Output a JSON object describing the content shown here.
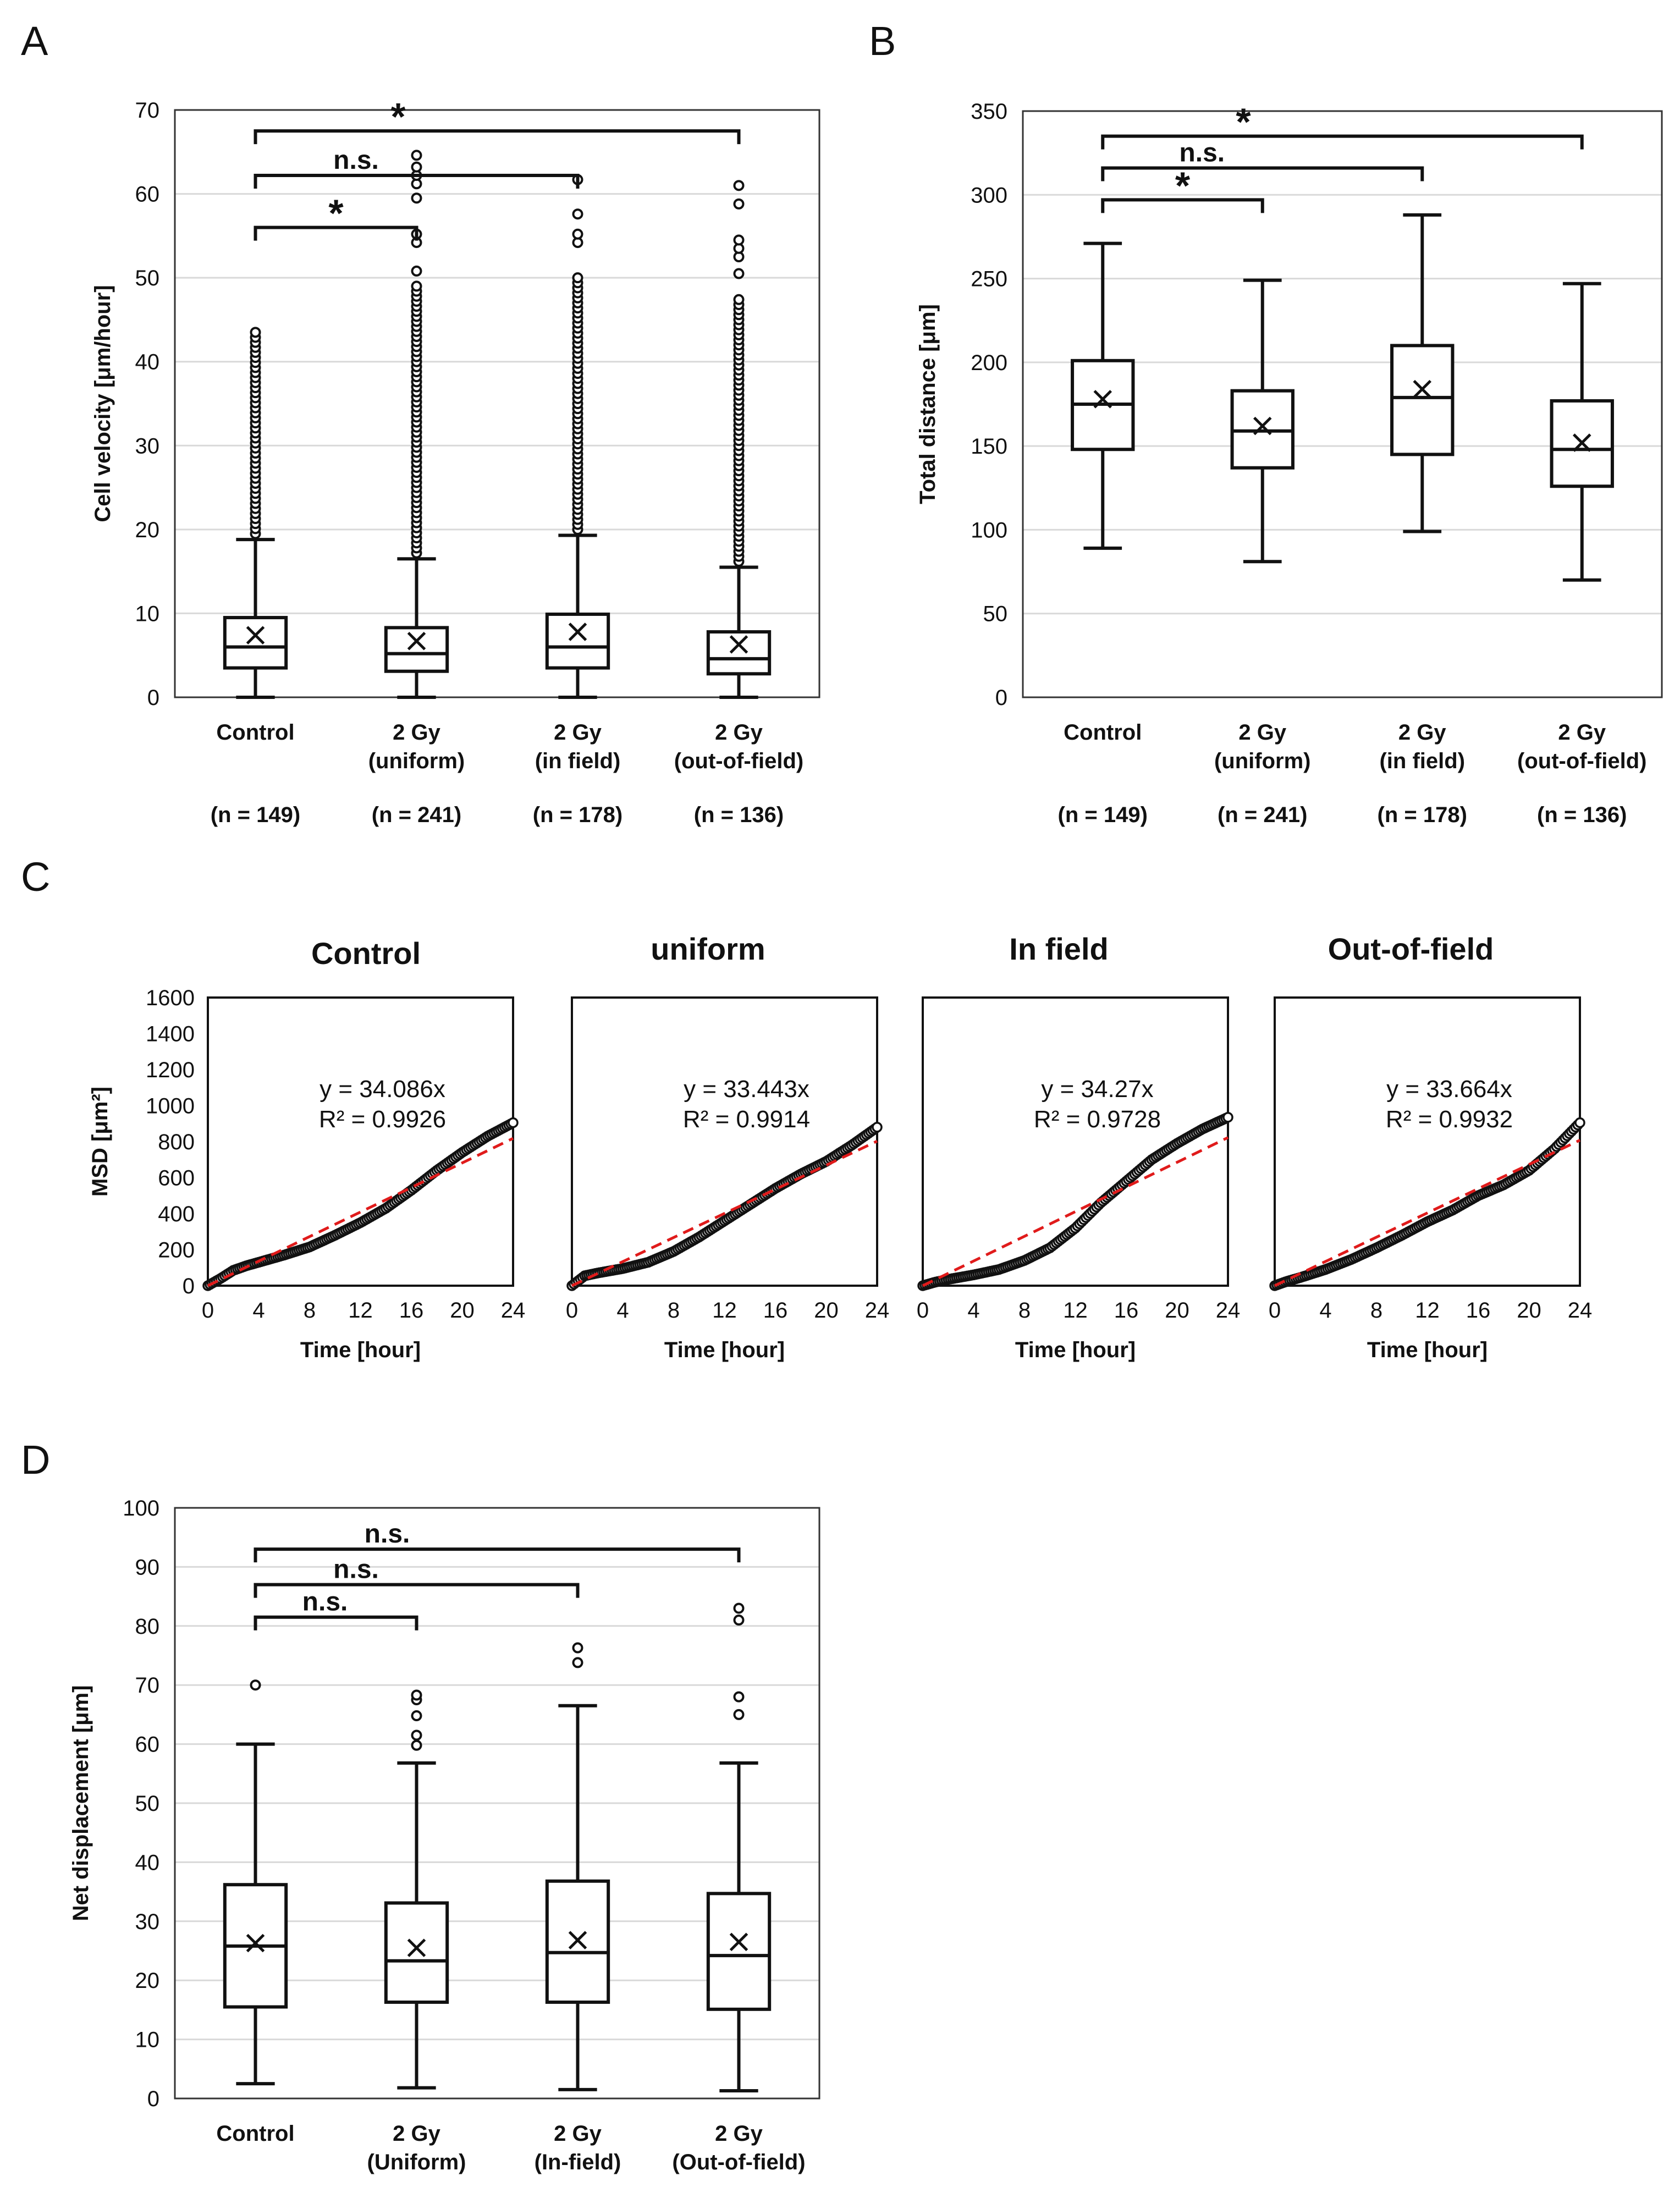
{
  "panels": {
    "A": {
      "letter": "A",
      "chart_data": {
        "type": "box",
        "title": "",
        "ylabel": "Cell velocity [μm/hour]",
        "ylim": [
          0,
          70
        ],
        "yticks": [
          0,
          10,
          20,
          30,
          40,
          50,
          60,
          70
        ],
        "grid": true,
        "groups": [
          {
            "label": "Control",
            "n_label": "(n = 149)",
            "min": 0,
            "q1": 3.5,
            "median": 6,
            "q3": 9.5,
            "max": 18.8,
            "mean": 7.4,
            "outlier_range": [
              19.5,
              43.8
            ]
          },
          {
            "label": "2 Gy\n(uniform)",
            "n_label": "(n = 241)",
            "min": 0,
            "q1": 3.1,
            "median": 5.2,
            "q3": 8.3,
            "max": 16.5,
            "mean": 6.7,
            "outlier_range": [
              17.2,
              49
            ],
            "outliers_extra": [
              50.8,
              54.2,
              55.2,
              59.5,
              61.2,
              62.2,
              63.2,
              64.6
            ]
          },
          {
            "label": "2 Gy\n(in field)",
            "n_label": "(n = 178)",
            "min": 0,
            "q1": 3.5,
            "median": 6,
            "q3": 9.9,
            "max": 19.3,
            "mean": 7.8,
            "outlier_range": [
              20,
              50.5
            ],
            "outliers_extra": [
              54.2,
              55.2,
              57.6,
              61.7
            ]
          },
          {
            "label": "2 Gy\n(out-of-field)",
            "n_label": "(n = 136)",
            "min": 0,
            "q1": 2.8,
            "median": 4.6,
            "q3": 7.8,
            "max": 15.5,
            "mean": 6.3,
            "outlier_range": [
              16.2,
              47.5
            ],
            "outliers_extra": [
              50.5,
              52.5,
              53.5,
              54.5,
              58.8,
              61
            ]
          }
        ],
        "significance": [
          {
            "from": 0,
            "to": 1,
            "label": "*",
            "level": 56
          },
          {
            "from": 0,
            "to": 2,
            "label": "n.s.",
            "level": 62.2
          },
          {
            "from": 0,
            "to": 3,
            "label": "*",
            "level": 67.5
          }
        ]
      }
    },
    "B": {
      "letter": "B",
      "chart_data": {
        "type": "box",
        "title": "",
        "ylabel": "Total distance [μm]",
        "ylim": [
          0,
          350
        ],
        "yticks": [
          0,
          50,
          100,
          150,
          200,
          250,
          300,
          350
        ],
        "grid": true,
        "groups": [
          {
            "label": "Control",
            "n_label": "(n = 149)",
            "min": 89,
            "q1": 148,
            "median": 175,
            "q3": 201,
            "max": 271,
            "mean": 178
          },
          {
            "label": "2 Gy\n(uniform)",
            "n_label": "(n = 241)",
            "min": 81,
            "q1": 137,
            "median": 159,
            "q3": 183,
            "max": 249,
            "mean": 162
          },
          {
            "label": "2 Gy\n(in field)",
            "n_label": "(n = 178)",
            "min": 99,
            "q1": 145,
            "median": 179,
            "q3": 210,
            "max": 288,
            "mean": 184
          },
          {
            "label": "2 Gy\n(out-of-field)",
            "n_label": "(n = 136)",
            "min": 70,
            "q1": 126,
            "median": 148,
            "q3": 177,
            "max": 247,
            "mean": 152
          }
        ],
        "significance": [
          {
            "from": 0,
            "to": 1,
            "label": "*",
            "level": 297
          },
          {
            "from": 0,
            "to": 2,
            "label": "n.s.",
            "level": 316
          },
          {
            "from": 0,
            "to": 3,
            "label": "*",
            "level": 335
          }
        ]
      }
    },
    "C": {
      "letter": "C",
      "chart_data": {
        "type": "scatter",
        "ylabel": "MSD [μm²]",
        "xlabel": "Time [hour]",
        "xlim": [
          0,
          24
        ],
        "ylim": [
          0,
          1600
        ],
        "xticks": [
          0,
          4,
          8,
          12,
          16,
          20,
          24
        ],
        "yticks": [
          0,
          200,
          400,
          600,
          800,
          1000,
          1200,
          1400,
          1600
        ],
        "fit_color": "#e01b1b",
        "series": [
          {
            "name": "Control",
            "slope": 34.086,
            "equation": "y = 34.086x",
            "r2": "R² = 0.9926",
            "points": [
              [
                0,
                0
              ],
              [
                1,
                40
              ],
              [
                2,
                85
              ],
              [
                3,
                110
              ],
              [
                4,
                130
              ],
              [
                6,
                170
              ],
              [
                8,
                215
              ],
              [
                10,
                280
              ],
              [
                12,
                350
              ],
              [
                14,
                430
              ],
              [
                16,
                530
              ],
              [
                18,
                640
              ],
              [
                20,
                740
              ],
              [
                22,
                830
              ],
              [
                24,
                905
              ]
            ]
          },
          {
            "name": "uniform",
            "slope": 33.443,
            "equation": "y = 33.443x",
            "r2": "R² = 0.9914",
            "points": [
              [
                0,
                0
              ],
              [
                1,
                55
              ],
              [
                2,
                70
              ],
              [
                4,
                95
              ],
              [
                6,
                130
              ],
              [
                8,
                190
              ],
              [
                10,
                270
              ],
              [
                12,
                360
              ],
              [
                14,
                450
              ],
              [
                16,
                540
              ],
              [
                18,
                620
              ],
              [
                20,
                690
              ],
              [
                22,
                780
              ],
              [
                24,
                880
              ]
            ]
          },
          {
            "name": "In field",
            "slope": 34.27,
            "equation": "y = 34.27x",
            "r2": "R² = 0.9728",
            "points": [
              [
                0,
                0
              ],
              [
                1,
                20
              ],
              [
                2,
                35
              ],
              [
                4,
                60
              ],
              [
                6,
                90
              ],
              [
                8,
                140
              ],
              [
                10,
                210
              ],
              [
                12,
                320
              ],
              [
                14,
                460
              ],
              [
                16,
                580
              ],
              [
                18,
                700
              ],
              [
                20,
                790
              ],
              [
                22,
                870
              ],
              [
                24,
                935
              ]
            ]
          },
          {
            "name": "Out-of-field",
            "slope": 33.664,
            "equation": "y = 33.664x",
            "r2": "R² = 0.9932",
            "points": [
              [
                0,
                0
              ],
              [
                1,
                25
              ],
              [
                2,
                45
              ],
              [
                4,
                90
              ],
              [
                6,
                145
              ],
              [
                8,
                210
              ],
              [
                10,
                280
              ],
              [
                12,
                355
              ],
              [
                14,
                420
              ],
              [
                16,
                500
              ],
              [
                18,
                560
              ],
              [
                20,
                640
              ],
              [
                22,
                760
              ],
              [
                24,
                905
              ]
            ]
          }
        ]
      }
    },
    "D": {
      "letter": "D",
      "chart_data": {
        "type": "box",
        "title": "",
        "ylabel": "Net displacement [μm]",
        "ylim": [
          0,
          100
        ],
        "yticks": [
          0,
          10,
          20,
          30,
          40,
          50,
          60,
          70,
          80,
          90,
          100
        ],
        "grid": true,
        "groups": [
          {
            "label": "Control",
            "n_label": "",
            "min": 2.5,
            "q1": 15.5,
            "median": 25.8,
            "q3": 36.2,
            "max": 60,
            "mean": 26.3,
            "outliers": [
              70
            ]
          },
          {
            "label": "2 Gy\n(Uniform)",
            "n_label": "",
            "min": 1.8,
            "q1": 16.3,
            "median": 23.3,
            "q3": 33.1,
            "max": 56.8,
            "mean": 25.5,
            "outliers": [
              59.8,
              61.5,
              64.8,
              67.5,
              68.3
            ]
          },
          {
            "label": "2 Gy\n(In-field)",
            "n_label": "",
            "min": 1.5,
            "q1": 16.3,
            "median": 24.7,
            "q3": 36.8,
            "max": 66.5,
            "mean": 26.8,
            "outliers": [
              73.8,
              76.3
            ]
          },
          {
            "label": "2 Gy\n(Out-of-field)",
            "n_label": "",
            "min": 1.3,
            "q1": 15.1,
            "median": 24.2,
            "q3": 34.7,
            "max": 56.8,
            "mean": 26.5,
            "outliers": [
              65,
              68,
              81,
              83
            ]
          }
        ],
        "significance": [
          {
            "from": 0,
            "to": 1,
            "label": "n.s.",
            "level": 81.5
          },
          {
            "from": 0,
            "to": 2,
            "label": "n.s.",
            "level": 87
          },
          {
            "from": 0,
            "to": 3,
            "label": "n.s.",
            "level": 93
          }
        ]
      }
    }
  }
}
